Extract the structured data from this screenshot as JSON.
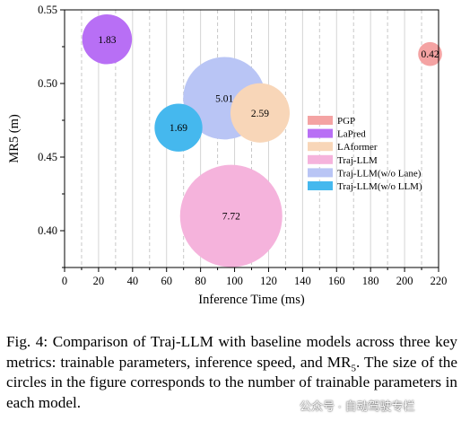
{
  "chart_data": {
    "type": "bubble",
    "xlabel": "Inference Time (ms)",
    "ylabel": "MR5 (m)",
    "xlim": [
      0,
      220
    ],
    "ylim": [
      0.375,
      0.55
    ],
    "x_ticks": [
      0,
      10,
      20,
      30,
      40,
      50,
      60,
      70,
      80,
      90,
      100,
      110,
      120,
      130,
      140,
      150,
      160,
      170,
      180,
      190,
      200,
      210,
      220
    ],
    "x_tick_labels": [
      "0",
      "20",
      "40",
      "60",
      "80",
      "100",
      "120",
      "140",
      "160",
      "180",
      "200",
      "220"
    ],
    "y_tick_labels": [
      "0.40",
      "0.45",
      "0.50",
      "0.55"
    ],
    "y_ticks": [
      0.4,
      0.45,
      0.5,
      0.55
    ],
    "grid": "vertical lines, alternating solid and dashed",
    "legend_position": "right",
    "size_encoding": "trainable parameters",
    "series": [
      {
        "name": "PGP",
        "x": 215,
        "y": 0.52,
        "size": 0.42,
        "label": "0.42",
        "color": "#f4a3a3"
      },
      {
        "name": "LaPred",
        "x": 25,
        "y": 0.53,
        "size": 1.83,
        "label": "1.83",
        "color": "#b86ff5"
      },
      {
        "name": "LAformer",
        "x": 115,
        "y": 0.48,
        "size": 2.59,
        "label": "2.59",
        "color": "#f8d6b8"
      },
      {
        "name": "Traj-LLM",
        "x": 98,
        "y": 0.41,
        "size": 7.72,
        "label": "7.72",
        "color": "#f5b3dc"
      },
      {
        "name": "Traj-LLM(w/o Lane)",
        "x": 94,
        "y": 0.49,
        "size": 5.01,
        "label": "5.01",
        "color": "#b9c5f5"
      },
      {
        "name": "Traj-LLM(w/o LLM)",
        "x": 67,
        "y": 0.47,
        "size": 1.69,
        "label": "1.69",
        "color": "#45b8ee"
      }
    ]
  },
  "caption": {
    "prefix": "Fig. 4: Comparison of Traj-LLM with baseline models across three key metrics: trainable parameters, inference speed, and MR",
    "subscript": "5",
    "suffix": ". The size of the circles in the figure corresponds to the number of trainable parameters in each model."
  },
  "watermark": "公众号 · 自动驾驶专栏"
}
